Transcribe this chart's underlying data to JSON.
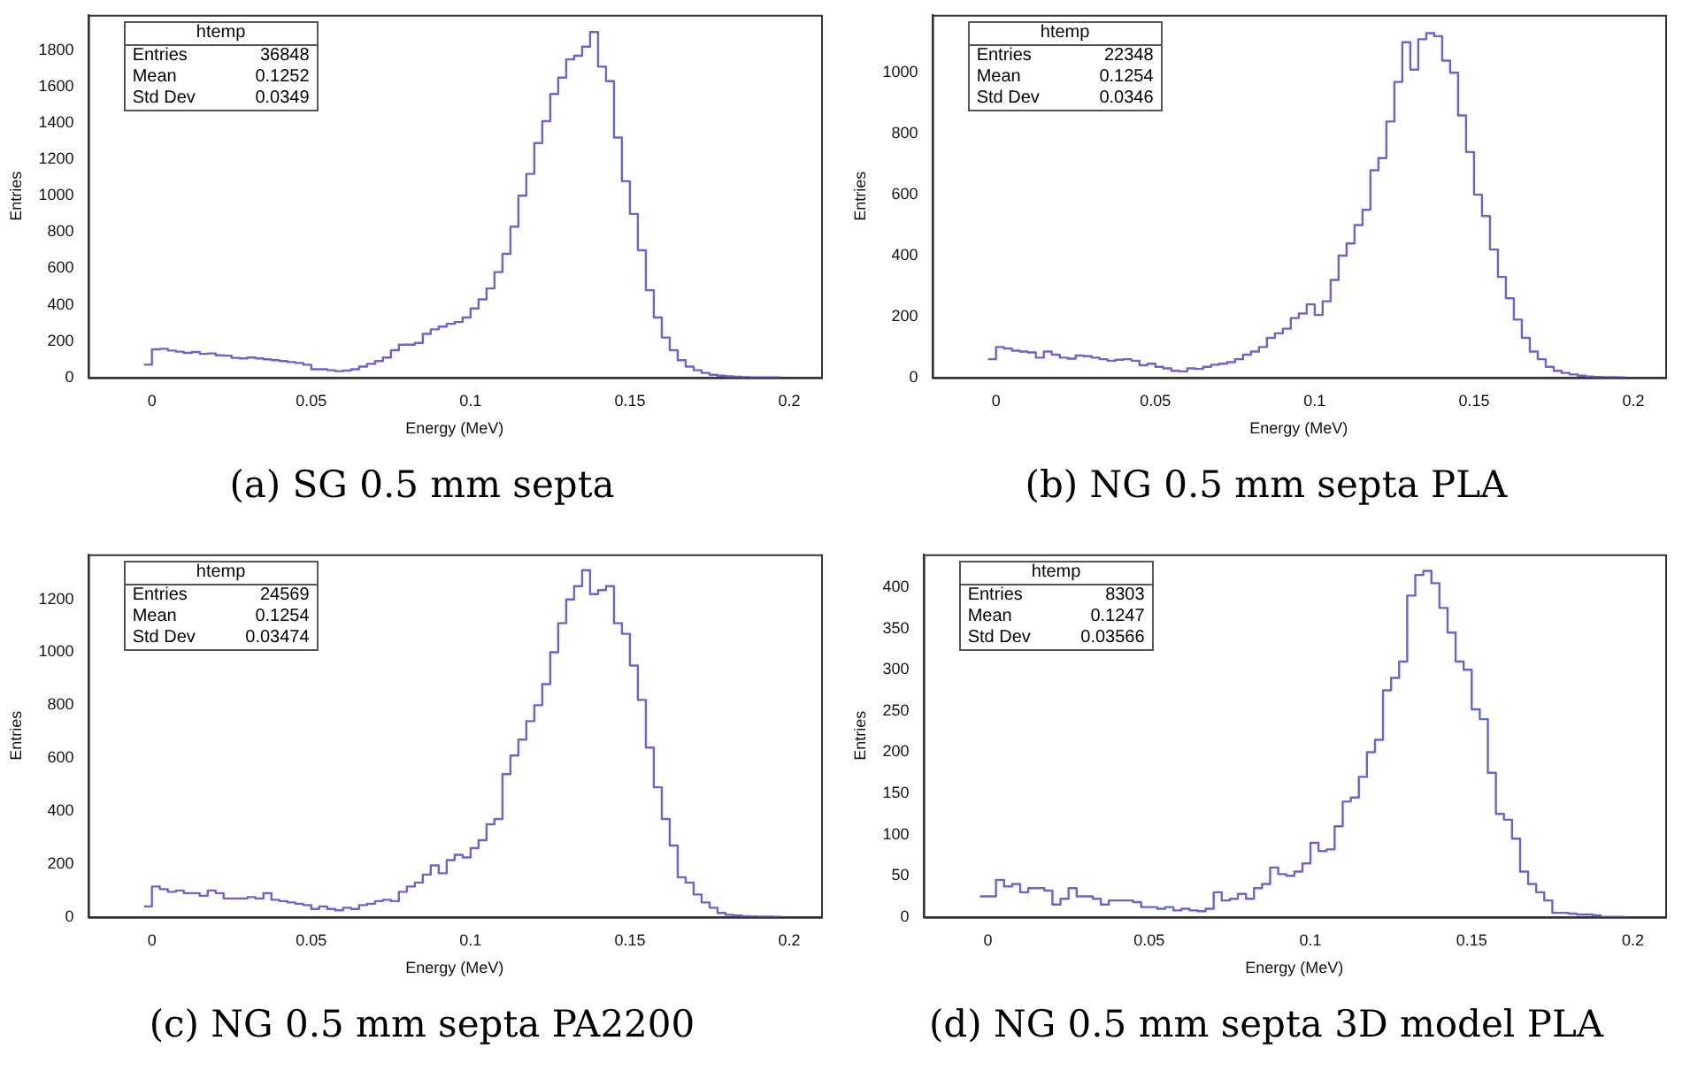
{
  "chart_data": [
    {
      "type": "histogram",
      "title": "(a) SG 0.5 mm septa",
      "xlabel": "Energy (MeV)",
      "ylabel": "Entries",
      "color": "#6666cc",
      "xlim": [
        -0.02,
        0.21
      ],
      "ylim": [
        0,
        1995
      ],
      "xticks": [
        0,
        0.05,
        0.1,
        0.15,
        0.2
      ],
      "yticks": [
        0,
        200,
        400,
        600,
        800,
        1000,
        1200,
        1400,
        1600,
        1800
      ],
      "annotations": [
        "htemp",
        "Entries 36848",
        "Mean 0.1252",
        "Std Dev 0.0349"
      ],
      "bins": [
        -0.0025,
        0,
        0.0025,
        0.005,
        0.0075,
        0.01,
        0.0125,
        0.015,
        0.0175,
        0.02,
        0.0225,
        0.025,
        0.0275,
        0.03,
        0.0325,
        0.035,
        0.0375,
        0.04,
        0.0425,
        0.045,
        0.0475,
        0.05,
        0.0525,
        0.055,
        0.0575,
        0.06,
        0.0625,
        0.065,
        0.0675,
        0.07,
        0.0725,
        0.075,
        0.0775,
        0.08,
        0.0825,
        0.085,
        0.0875,
        0.09,
        0.0925,
        0.095,
        0.0975,
        0.1,
        0.1025,
        0.105,
        0.1075,
        0.11,
        0.1125,
        0.115,
        0.1175,
        0.12,
        0.1225,
        0.125,
        0.1275,
        0.13,
        0.1325,
        0.135,
        0.1375,
        0.14,
        0.1425,
        0.145,
        0.1475,
        0.15,
        0.1525,
        0.155,
        0.1575,
        0.16,
        0.1625,
        0.165,
        0.1675,
        0.17,
        0.1725,
        0.175,
        0.1775,
        0.18,
        0.1825,
        0.185,
        0.1875,
        0.19,
        0.1925,
        0.195,
        0.1975
      ],
      "values": [
        70,
        155,
        158,
        148,
        142,
        135,
        140,
        130,
        132,
        122,
        120,
        108,
        105,
        110,
        105,
        100,
        95,
        90,
        85,
        80,
        70,
        45,
        45,
        40,
        35,
        38,
        45,
        60,
        75,
        90,
        110,
        150,
        180,
        180,
        190,
        240,
        265,
        280,
        295,
        305,
        330,
        380,
        430,
        490,
        580,
        680,
        830,
        1000,
        1120,
        1290,
        1410,
        1560,
        1650,
        1750,
        1770,
        1820,
        1900,
        1710,
        1630,
        1320,
        1080,
        900,
        700,
        480,
        330,
        220,
        150,
        95,
        60,
        40,
        25,
        15,
        10,
        6,
        4,
        2,
        1,
        1,
        0,
        0
      ]
    },
    {
      "type": "histogram",
      "title": "(b) NG 0.5 mm septa PLA",
      "xlabel": "Energy (MeV)",
      "ylabel": "Entries",
      "color": "#6666cc",
      "xlim": [
        -0.02,
        0.21
      ],
      "ylim": [
        0,
        1190
      ],
      "xticks": [
        0,
        0.05,
        0.1,
        0.15,
        0.2
      ],
      "yticks": [
        0,
        200,
        400,
        600,
        800,
        1000
      ],
      "annotations": [
        "htemp",
        "Entries 22348",
        "Mean 0.1254",
        "Std Dev 0.0346"
      ],
      "bins": [
        -0.0025,
        0,
        0.0025,
        0.005,
        0.0075,
        0.01,
        0.0125,
        0.015,
        0.0175,
        0.02,
        0.0225,
        0.025,
        0.0275,
        0.03,
        0.0325,
        0.035,
        0.0375,
        0.04,
        0.0425,
        0.045,
        0.0475,
        0.05,
        0.0525,
        0.055,
        0.0575,
        0.06,
        0.0625,
        0.065,
        0.0675,
        0.07,
        0.0725,
        0.075,
        0.0775,
        0.08,
        0.0825,
        0.085,
        0.0875,
        0.09,
        0.0925,
        0.095,
        0.0975,
        0.1,
        0.1025,
        0.105,
        0.1075,
        0.11,
        0.1125,
        0.115,
        0.1175,
        0.12,
        0.1225,
        0.125,
        0.1275,
        0.13,
        0.1325,
        0.135,
        0.1375,
        0.14,
        0.1425,
        0.145,
        0.1475,
        0.15,
        0.1525,
        0.155,
        0.1575,
        0.16,
        0.1625,
        0.165,
        0.1675,
        0.17,
        0.1725,
        0.175,
        0.1775,
        0.18,
        0.1825,
        0.185,
        0.1875,
        0.19,
        0.1925,
        0.195,
        0.1975
      ],
      "values": [
        60,
        100,
        95,
        88,
        85,
        82,
        65,
        85,
        75,
        65,
        62,
        72,
        70,
        65,
        60,
        55,
        58,
        60,
        55,
        40,
        45,
        35,
        30,
        22,
        20,
        30,
        28,
        35,
        42,
        45,
        50,
        60,
        75,
        85,
        100,
        130,
        145,
        160,
        195,
        210,
        240,
        205,
        250,
        320,
        400,
        440,
        500,
        550,
        680,
        720,
        840,
        970,
        1100,
        1010,
        1110,
        1130,
        1120,
        1040,
        1000,
        860,
        740,
        600,
        530,
        420,
        330,
        260,
        190,
        130,
        85,
        60,
        35,
        22,
        15,
        10,
        6,
        3,
        2,
        1,
        1,
        0
      ]
    },
    {
      "type": "histogram",
      "title": "(c) NG 0.5 mm septa PA2200",
      "xlabel": "Energy (MeV)",
      "ylabel": "Entries",
      "color": "#6666cc",
      "xlim": [
        -0.02,
        0.21
      ],
      "ylim": [
        0,
        1370
      ],
      "xticks": [
        0,
        0.05,
        0.1,
        0.15,
        0.2
      ],
      "yticks": [
        0,
        200,
        400,
        600,
        800,
        1000,
        1200
      ],
      "annotations": [
        "htemp",
        "Entries 24569",
        "Mean 0.1254",
        "Std Dev 0.03474"
      ],
      "bins": [
        -0.0025,
        0,
        0.0025,
        0.005,
        0.0075,
        0.01,
        0.0125,
        0.015,
        0.0175,
        0.02,
        0.0225,
        0.025,
        0.0275,
        0.03,
        0.0325,
        0.035,
        0.0375,
        0.04,
        0.0425,
        0.045,
        0.0475,
        0.05,
        0.0525,
        0.055,
        0.0575,
        0.06,
        0.0625,
        0.065,
        0.0675,
        0.07,
        0.0725,
        0.075,
        0.0775,
        0.08,
        0.0825,
        0.085,
        0.0875,
        0.09,
        0.0925,
        0.095,
        0.0975,
        0.1,
        0.1025,
        0.105,
        0.1075,
        0.11,
        0.1125,
        0.115,
        0.1175,
        0.12,
        0.1225,
        0.125,
        0.1275,
        0.13,
        0.1325,
        0.135,
        0.1375,
        0.14,
        0.1425,
        0.145,
        0.1475,
        0.15,
        0.1525,
        0.155,
        0.1575,
        0.16,
        0.1625,
        0.165,
        0.1675,
        0.17,
        0.1725,
        0.175,
        0.1775,
        0.18,
        0.1825,
        0.185,
        0.1875,
        0.19,
        0.1925,
        0.195,
        0.1975
      ],
      "values": [
        40,
        115,
        105,
        95,
        100,
        90,
        90,
        80,
        100,
        90,
        70,
        70,
        70,
        75,
        70,
        90,
        65,
        60,
        55,
        50,
        45,
        30,
        40,
        30,
        25,
        35,
        30,
        45,
        50,
        60,
        65,
        60,
        95,
        115,
        130,
        160,
        195,
        165,
        215,
        235,
        225,
        260,
        290,
        350,
        370,
        540,
        610,
        670,
        740,
        800,
        880,
        1000,
        1110,
        1200,
        1250,
        1310,
        1220,
        1235,
        1250,
        1110,
        1070,
        950,
        820,
        640,
        490,
        370,
        270,
        150,
        130,
        85,
        55,
        35,
        15,
        8,
        5,
        3,
        2,
        1,
        1,
        0
      ]
    },
    {
      "type": "histogram",
      "title": "(d) NG 0.5 mm septa 3D model PLA",
      "xlabel": "Energy (MeV)",
      "ylabel": "Entries",
      "color": "#6666cc",
      "xlim": [
        -0.02,
        0.21
      ],
      "ylim": [
        0,
        440
      ],
      "xticks": [
        0,
        0.05,
        0.1,
        0.15,
        0.2
      ],
      "yticks": [
        0,
        50,
        100,
        150,
        200,
        250,
        300,
        350,
        400
      ],
      "annotations": [
        "htemp",
        "Entries 8303",
        "Mean 0.1247",
        "Std Dev 0.03566"
      ],
      "bins": [
        -0.0025,
        0,
        0.0025,
        0.005,
        0.0075,
        0.01,
        0.0125,
        0.015,
        0.0175,
        0.02,
        0.0225,
        0.025,
        0.0275,
        0.03,
        0.0325,
        0.035,
        0.0375,
        0.04,
        0.0425,
        0.045,
        0.0475,
        0.05,
        0.0525,
        0.055,
        0.0575,
        0.06,
        0.0625,
        0.065,
        0.0675,
        0.07,
        0.0725,
        0.075,
        0.0775,
        0.08,
        0.0825,
        0.085,
        0.0875,
        0.09,
        0.0925,
        0.095,
        0.0975,
        0.1,
        0.1025,
        0.105,
        0.1075,
        0.11,
        0.1125,
        0.115,
        0.1175,
        0.12,
        0.1225,
        0.125,
        0.1275,
        0.13,
        0.1325,
        0.135,
        0.1375,
        0.14,
        0.1425,
        0.145,
        0.1475,
        0.15,
        0.1525,
        0.155,
        0.1575,
        0.16,
        0.1625,
        0.165,
        0.1675,
        0.17,
        0.1725,
        0.175,
        0.1775,
        0.18,
        0.1825,
        0.185,
        0.1875,
        0.19,
        0.1925,
        0.195,
        0.1975
      ],
      "values": [
        25,
        25,
        45,
        37,
        40,
        30,
        35,
        35,
        32,
        15,
        22,
        35,
        25,
        25,
        22,
        15,
        20,
        20,
        20,
        18,
        12,
        12,
        10,
        12,
        8,
        10,
        8,
        7,
        10,
        30,
        20,
        22,
        28,
        22,
        35,
        40,
        60,
        52,
        50,
        55,
        65,
        90,
        80,
        82,
        110,
        140,
        145,
        170,
        200,
        215,
        275,
        290,
        310,
        390,
        415,
        420,
        405,
        375,
        345,
        310,
        300,
        252,
        240,
        175,
        125,
        118,
        95,
        55,
        40,
        30,
        20,
        5,
        5,
        4,
        3,
        3,
        2,
        0,
        0,
        0
      ]
    }
  ]
}
